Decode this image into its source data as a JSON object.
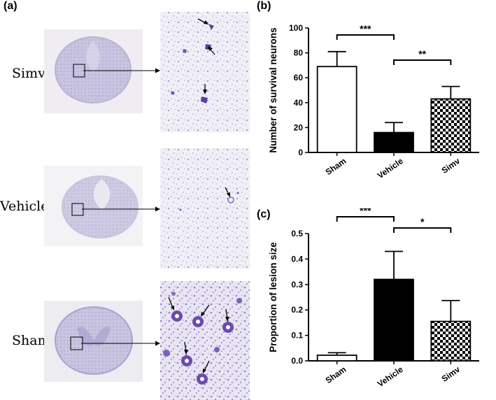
{
  "figure": {
    "panels": {
      "a": "(a)",
      "b": "(b)",
      "c": "(c)"
    },
    "rows": [
      {
        "label": "Simv"
      },
      {
        "label": "Vehicle"
      },
      {
        "label": "Sham"
      }
    ],
    "colors": {
      "stain": "#8f86c8",
      "tissue_bg": "#ece9f1",
      "neuron": "#5a3fa0",
      "bar_vehicle": "#000000",
      "bar_sham": "#ffffff"
    }
  },
  "chart_data": [
    {
      "type": "bar",
      "panel": "(b)",
      "categories": [
        "Sham",
        "Vehicle",
        "Simv"
      ],
      "values": [
        69,
        16,
        43
      ],
      "errors": [
        12,
        8,
        10
      ],
      "fills": [
        "white",
        "black",
        "checkered"
      ],
      "ylabel": "Number of survival neurons",
      "ylim": [
        0,
        100
      ],
      "yticks": [
        "0",
        "20",
        "40",
        "60",
        "80",
        "100"
      ],
      "significance": [
        {
          "from": 0,
          "to": 1,
          "label": "***"
        },
        {
          "from": 1,
          "to": 2,
          "label": "**"
        }
      ]
    },
    {
      "type": "bar",
      "panel": "(c)",
      "categories": [
        "Sham",
        "Vehicle",
        "Simv"
      ],
      "values": [
        0.022,
        0.32,
        0.155
      ],
      "errors": [
        0.01,
        0.11,
        0.082
      ],
      "fills": [
        "white",
        "black",
        "checkered"
      ],
      "ylabel": "Proportion of lesion size",
      "ylim": [
        0,
        0.5
      ],
      "yticks": [
        "0.0",
        "0.1",
        "0.2",
        "0.3",
        "0.4",
        "0.5"
      ],
      "significance": [
        {
          "from": 0,
          "to": 1,
          "label": "***"
        },
        {
          "from": 1,
          "to": 2,
          "label": "*"
        }
      ]
    }
  ]
}
